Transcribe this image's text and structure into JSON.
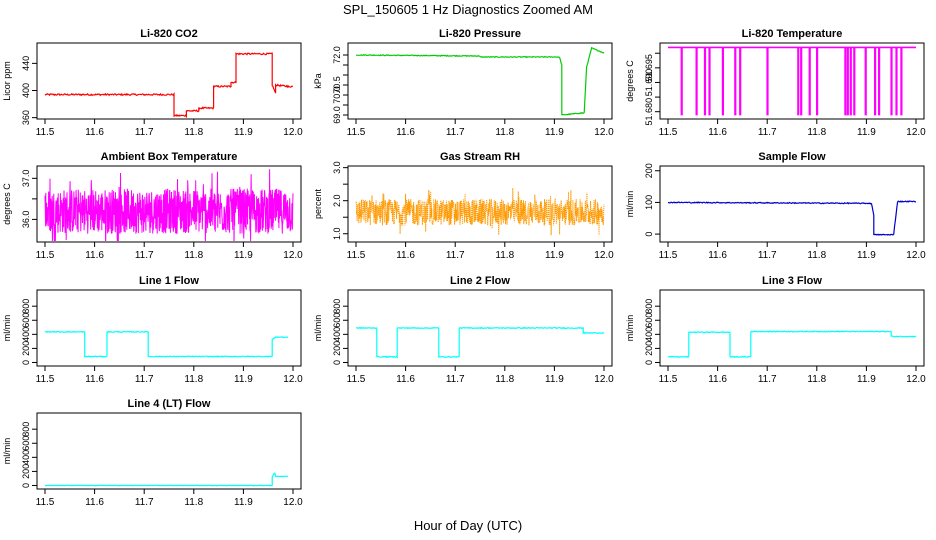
{
  "figure": {
    "title": "SPL_150605  1 Hz Diagnostics Zoomed AM",
    "x_axis_title": "Hour of Day (UTC)"
  },
  "chart_data": [
    {
      "type": "line",
      "title": "Li-820 CO2",
      "ylabel": "Licor ppm",
      "color": "#ff0000",
      "xlim": [
        11.5,
        12.0
      ],
      "xticks": [
        11.5,
        11.6,
        11.7,
        11.8,
        11.9,
        12.0
      ],
      "xtick_labels": [
        "11.5",
        "11.6",
        "11.7",
        "11.8",
        "11.9",
        "12.0"
      ],
      "ylim": [
        358,
        470
      ],
      "yticks": [
        360,
        400,
        440
      ],
      "ytick_labels": [
        "360",
        "400",
        "440"
      ],
      "noise": 1.2,
      "x": [
        11.5,
        11.76,
        11.76,
        11.785,
        11.785,
        11.81,
        11.81,
        11.84,
        11.84,
        11.875,
        11.875,
        11.885,
        11.885,
        11.958,
        11.958,
        11.965,
        11.965,
        11.99,
        11.99,
        12.0
      ],
      "y": [
        394,
        394,
        363,
        363,
        370,
        370,
        374,
        374,
        406,
        406,
        412,
        412,
        454,
        454,
        408,
        396,
        408,
        406,
        406,
        406
      ]
    },
    {
      "type": "line",
      "title": "Li-820 Pressure",
      "ylabel": "kPa",
      "color": "#00cc00",
      "xlim": [
        11.5,
        12.0
      ],
      "xticks": [
        11.5,
        11.6,
        11.7,
        11.8,
        11.9,
        12.0
      ],
      "xtick_labels": [
        "11.5",
        "11.6",
        "11.7",
        "11.8",
        "11.9",
        "12.0"
      ],
      "ylim": [
        68.8,
        72.6
      ],
      "yticks": [
        69.0,
        69.5,
        70.0,
        70.5,
        71.0,
        71.5,
        72.0
      ],
      "ytick_labels": [
        "69.0",
        "",
        "70.0",
        "70.5",
        "",
        "",
        "72.0"
      ],
      "noise": 0.02,
      "x": [
        11.5,
        11.75,
        11.75,
        11.91,
        11.915,
        11.915,
        11.955,
        11.96,
        11.965,
        11.975,
        12.0
      ],
      "y": [
        72.0,
        71.95,
        71.9,
        71.9,
        71.5,
        69.0,
        69.1,
        69.1,
        71.4,
        72.35,
        72.1
      ]
    },
    {
      "type": "spikes",
      "title": "Li-820 Temperature",
      "ylabel": "degrees C",
      "color": "#ff00ff",
      "xlim": [
        11.5,
        12.0
      ],
      "xticks": [
        11.5,
        11.6,
        11.7,
        11.8,
        11.9,
        12.0
      ],
      "xtick_labels": [
        "11.5",
        "11.6",
        "11.7",
        "11.8",
        "11.9",
        "12.0"
      ],
      "ylim": [
        51.6775,
        51.7035
      ],
      "yticks": [
        51.68,
        51.685,
        51.69,
        51.695,
        51.7
      ],
      "ytick_labels": [
        "51.680",
        "",
        "51.690",
        "51.695",
        ""
      ],
      "baseline": 51.702,
      "low": 51.679,
      "spikes_x": [
        11.527,
        11.557,
        11.574,
        11.583,
        11.61,
        11.635,
        11.645,
        11.7,
        11.762,
        11.768,
        11.785,
        11.8,
        11.857,
        11.862,
        11.868,
        11.875,
        11.898,
        11.917,
        11.925,
        11.95,
        11.96,
        11.97
      ]
    },
    {
      "type": "noise",
      "title": "Ambient Box Temperature",
      "ylabel": "degrees C",
      "color": "#ff00ff",
      "xlim": [
        11.5,
        12.0
      ],
      "xticks": [
        11.5,
        11.6,
        11.7,
        11.8,
        11.9,
        12.0
      ],
      "xtick_labels": [
        "11.5",
        "11.6",
        "11.7",
        "11.8",
        "11.9",
        "12.0"
      ],
      "ylim": [
        35.45,
        37.3
      ],
      "yticks": [
        36.0,
        36.5,
        37.0
      ],
      "ytick_labels": [
        "36.0",
        "",
        "37.0"
      ],
      "center": 36.2,
      "amp": 0.55
    },
    {
      "type": "noise",
      "title": "Gas Stream RH",
      "ylabel": "percent",
      "color": "#ff9900",
      "xlim": [
        11.5,
        12.0
      ],
      "xticks": [
        11.5,
        11.6,
        11.7,
        11.8,
        11.9,
        12.0
      ],
      "xtick_labels": [
        "11.5",
        "11.6",
        "11.7",
        "11.8",
        "11.9",
        "12.0"
      ],
      "ylim": [
        0.75,
        3.05
      ],
      "yticks": [
        1.0,
        1.5,
        2.0,
        2.5,
        3.0
      ],
      "ytick_labels": [
        "1.0",
        "",
        "2.0",
        "",
        "3.0"
      ],
      "center": 1.65,
      "amp": 0.4,
      "dotted": true
    },
    {
      "type": "line",
      "title": "Sample Flow",
      "ylabel": "ml/min",
      "color": "#0000cc",
      "xlim": [
        11.5,
        12.0
      ],
      "xticks": [
        11.5,
        11.6,
        11.7,
        11.8,
        11.9,
        12.0
      ],
      "xtick_labels": [
        "11.5",
        "11.6",
        "11.7",
        "11.8",
        "11.9",
        "12.0"
      ],
      "ylim": [
        -25,
        215
      ],
      "yticks": [
        0,
        100,
        200
      ],
      "ytick_labels": [
        "0",
        "100",
        "200"
      ],
      "noise": 1.5,
      "x": [
        11.5,
        11.91,
        11.915,
        11.915,
        11.955,
        11.958,
        11.963,
        12.0
      ],
      "y": [
        100,
        97,
        60,
        -2,
        -2,
        40,
        103,
        103
      ]
    },
    {
      "type": "line",
      "title": "Line 1 Flow",
      "ylabel": "ml/min",
      "color": "#00ffff",
      "xlim": [
        11.5,
        12.0
      ],
      "xticks": [
        11.5,
        11.6,
        11.7,
        11.8,
        11.9,
        12.0
      ],
      "xtick_labels": [
        "11.5",
        "11.6",
        "11.7",
        "11.8",
        "11.9",
        "12.0"
      ],
      "ylim": [
        -50,
        1030
      ],
      "yticks": [
        0,
        200,
        400,
        600,
        800
      ],
      "ytick_labels": [
        "0",
        "200",
        "400",
        "600",
        "800"
      ],
      "noise": 6,
      "x": [
        11.5,
        11.58,
        11.58,
        11.625,
        11.625,
        11.708,
        11.708,
        11.958,
        11.958,
        11.965,
        11.99
      ],
      "y": [
        435,
        435,
        85,
        85,
        435,
        435,
        85,
        85,
        330,
        360,
        360
      ]
    },
    {
      "type": "line",
      "title": "Line 2 Flow",
      "ylabel": "ml/min",
      "color": "#00ffff",
      "xlim": [
        11.5,
        12.0
      ],
      "xticks": [
        11.5,
        11.6,
        11.7,
        11.8,
        11.9,
        12.0
      ],
      "xtick_labels": [
        "11.5",
        "11.6",
        "11.7",
        "11.8",
        "11.9",
        "12.0"
      ],
      "ylim": [
        -50,
        1030
      ],
      "yticks": [
        0,
        200,
        400,
        600,
        800
      ],
      "ytick_labels": [
        "0",
        "200",
        "400",
        "600",
        "800"
      ],
      "noise": 6,
      "x": [
        11.5,
        11.542,
        11.542,
        11.583,
        11.583,
        11.667,
        11.667,
        11.708,
        11.708,
        11.958,
        11.958,
        12.0
      ],
      "y": [
        490,
        490,
        80,
        80,
        490,
        490,
        80,
        80,
        490,
        490,
        420,
        420
      ]
    },
    {
      "type": "line",
      "title": "Line 3 Flow",
      "ylabel": "ml/min",
      "color": "#00ffff",
      "xlim": [
        11.5,
        12.0
      ],
      "xticks": [
        11.5,
        11.6,
        11.7,
        11.8,
        11.9,
        12.0
      ],
      "xtick_labels": [
        "11.5",
        "11.6",
        "11.7",
        "11.8",
        "11.9",
        "12.0"
      ],
      "ylim": [
        -50,
        1030
      ],
      "yticks": [
        0,
        200,
        400,
        600,
        800
      ],
      "ytick_labels": [
        "0",
        "200",
        "400",
        "600",
        "800"
      ],
      "noise": 6,
      "x": [
        11.5,
        11.542,
        11.542,
        11.625,
        11.625,
        11.667,
        11.667,
        11.95,
        11.95,
        12.0
      ],
      "y": [
        80,
        80,
        430,
        430,
        80,
        80,
        440,
        440,
        370,
        370
      ]
    },
    {
      "type": "line",
      "title": "Line 4 (LT) Flow",
      "ylabel": "ml/min",
      "color": "#00ffff",
      "xlim": [
        11.5,
        12.0
      ],
      "xticks": [
        11.5,
        11.6,
        11.7,
        11.8,
        11.9,
        12.0
      ],
      "xtick_labels": [
        "11.5",
        "11.6",
        "11.7",
        "11.8",
        "11.9",
        "12.0"
      ],
      "ylim": [
        -50,
        1030
      ],
      "yticks": [
        0,
        200,
        400,
        600,
        800
      ],
      "ytick_labels": [
        "0",
        "200",
        "400",
        "600",
        "800"
      ],
      "noise": 2,
      "x": [
        11.5,
        11.958,
        11.958,
        11.963,
        11.965,
        11.99
      ],
      "y": [
        0,
        0,
        120,
        180,
        130,
        130
      ]
    }
  ]
}
